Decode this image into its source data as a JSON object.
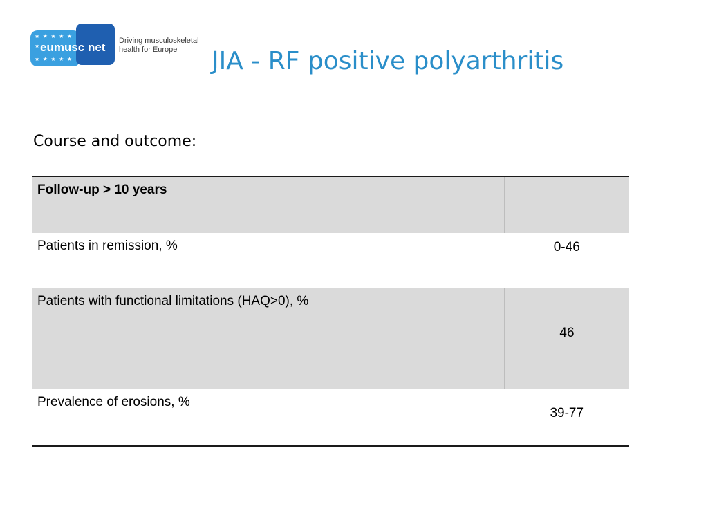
{
  "logo": {
    "name": "eumusc net",
    "tagline": "Driving musculoskeletal\nhealth for Europe",
    "stars": "★ ★ ★ ★ ★ ★"
  },
  "slide": {
    "title": "JIA - RF positive polyarthritis",
    "subtitle": "Course and outcome:"
  },
  "table": {
    "header": {
      "label": "Follow-up > 10 years",
      "value": ""
    },
    "rows": [
      {
        "label": "Patients in remission, %",
        "value": "0-46"
      },
      {
        "label": "Patients with functional limitations (HAQ>0), %",
        "value": "46"
      },
      {
        "label": "Prevalence of erosions, %",
        "value": "39-77"
      }
    ]
  },
  "colors": {
    "title": "#2a8ec9",
    "logo_light": "#3aa0e0",
    "logo_dark": "#1f5fb0",
    "row_shade": "#dadada"
  }
}
